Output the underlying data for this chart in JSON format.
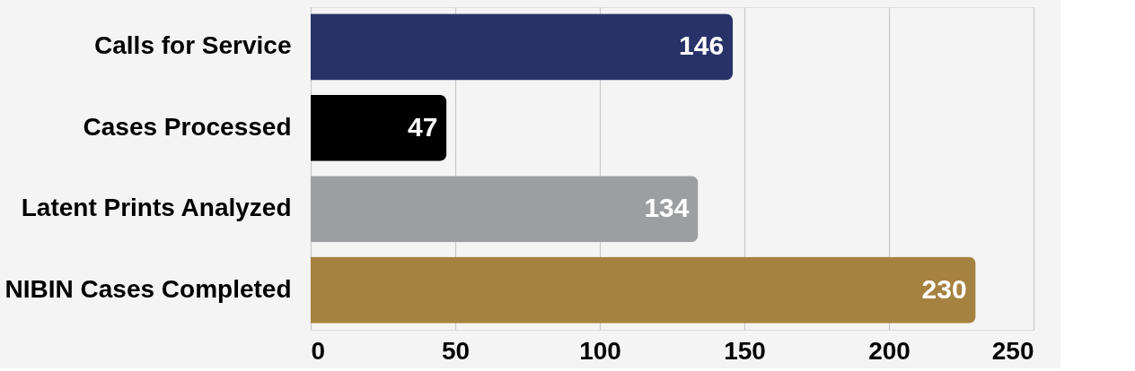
{
  "chart_data": {
    "type": "bar",
    "orientation": "horizontal",
    "categories": [
      "Calls for Service",
      "Cases Processed",
      "Latent Prints Analyzed",
      "NIBIN Cases Completed"
    ],
    "values": [
      146,
      47,
      134,
      230
    ],
    "colors": [
      "#283269",
      "#000000",
      "#9d9ea1",
      "#a68240"
    ],
    "xlim": [
      0,
      250
    ],
    "xticks": [
      0,
      50,
      100,
      150,
      200,
      250
    ],
    "grid": "x",
    "data_labels": true
  }
}
